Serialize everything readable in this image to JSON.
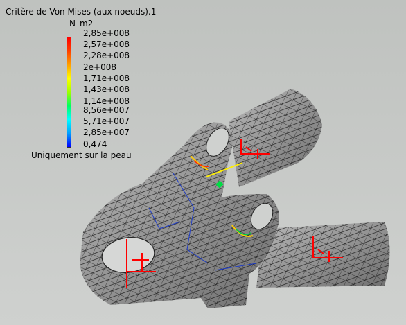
{
  "legend": {
    "title": "Critère de Von Mises (aux noeuds).1",
    "unit": "N_m2",
    "ticks": [
      "2,85e+008",
      "2,57e+008",
      "2,28e+008",
      "2e+008",
      "1,71e+008",
      "1,43e+008",
      "1,14e+008",
      "8,56e+007",
      "5,71e+007",
      "2,85e+007",
      "0,474"
    ],
    "footer": "Uniquement sur la peau",
    "scale_colors": [
      "#0000ff",
      "#00a0ff",
      "#00ffff",
      "#00ff60",
      "#a0ff00",
      "#ffff00",
      "#ffa000",
      "#ff4000",
      "#ff0000"
    ]
  },
  "model": {
    "mesh_color": "#9a9a9a",
    "mesh_line_color": "#1a1a1a",
    "load_marker_color": "#ff0000",
    "load_color": "#ffee00"
  }
}
